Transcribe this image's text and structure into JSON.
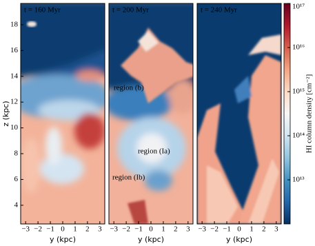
{
  "chart_data": [
    {
      "type": "image",
      "title": "t = 160 Myr",
      "xlabel": "y  (kpc)",
      "ylabel": "z (kpc)",
      "xlim": [
        -3.4,
        3.4
      ],
      "ylim": [
        2.55,
        19.65
      ],
      "xticks": [
        {
          "value": -3,
          "label": "−3"
        },
        {
          "value": -2,
          "label": "−2"
        },
        {
          "value": -1,
          "label": "−1"
        },
        0,
        1,
        2,
        3
      ],
      "yticks": [
        4,
        6,
        8,
        10,
        12,
        14,
        16,
        18
      ]
    },
    {
      "type": "image",
      "title": "t = 200 Myr",
      "xlabel": "y  (kpc)",
      "xlim": [
        -3.4,
        3.4
      ],
      "ylim": [
        2.55,
        19.65
      ],
      "xticks": [
        {
          "value": -3,
          "label": "−3"
        },
        {
          "value": -2,
          "label": "−2"
        },
        {
          "value": -1,
          "label": "−1"
        },
        0,
        1,
        2,
        3
      ],
      "annotations": [
        "region (b)",
        "region (Ia)",
        "region (Ib)"
      ]
    },
    {
      "type": "image",
      "title": "t = 240 Myr",
      "xlabel": "y  (kpc)",
      "xlim": [
        -3.4,
        3.4
      ],
      "ylim": [
        2.55,
        19.65
      ],
      "xticks": [
        {
          "value": -3,
          "label": "−3"
        },
        {
          "value": -2,
          "label": "−2"
        },
        {
          "value": -1,
          "label": "−1"
        },
        0,
        1,
        2,
        3
      ],
      "colorbar": {
        "label": "HI column density [cm⁻²]",
        "log": true,
        "lim": [
          1000000000000.0,
          1e+17
        ],
        "ticks": [
          {
            "value": 10000000000000.0,
            "label": "10¹³"
          },
          {
            "value": 100000000000000.0,
            "label": "10¹⁴"
          },
          {
            "value": 1000000000000000.0,
            "label": "10¹⁵"
          },
          {
            "value": 1e+16,
            "label": "10¹⁶"
          },
          {
            "value": 1e+17,
            "label": "10¹⁷"
          }
        ]
      }
    }
  ]
}
